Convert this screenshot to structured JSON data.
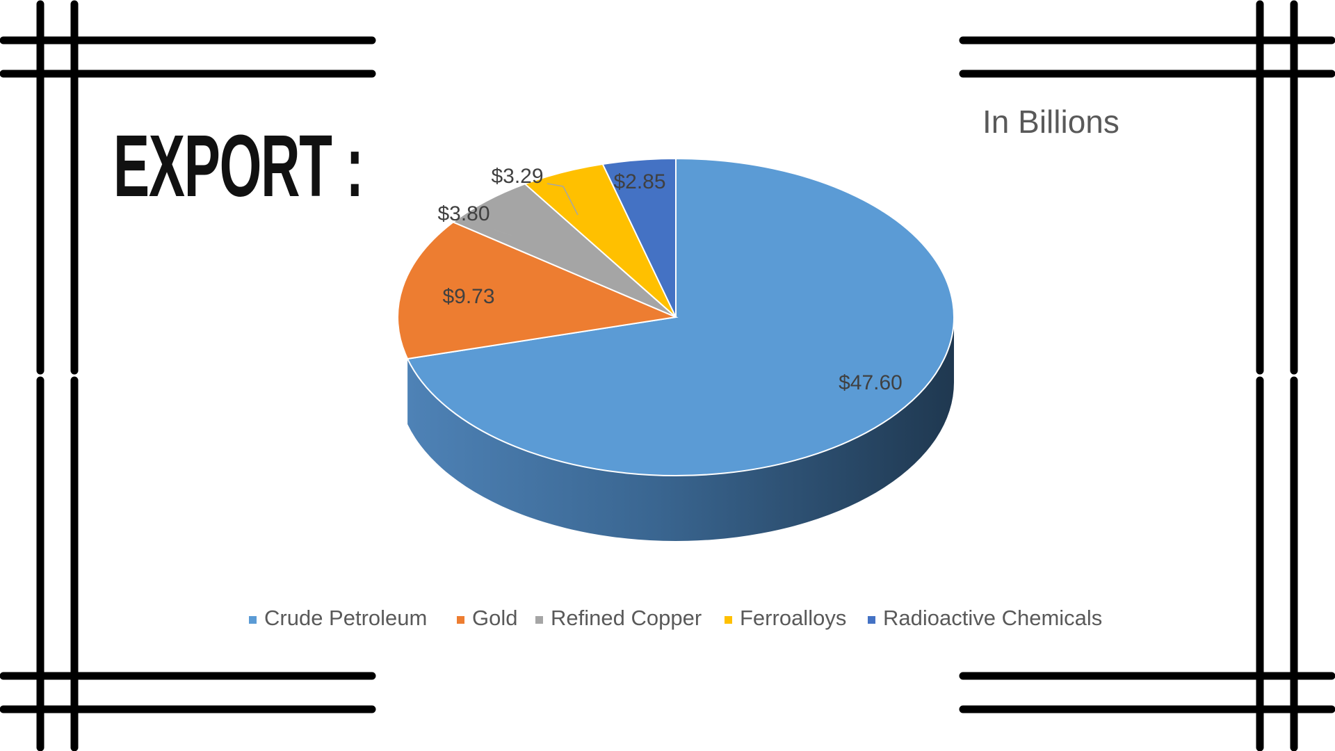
{
  "slide": {
    "title": "EXPORT :",
    "unit_label": "In Billions"
  },
  "chart_data": {
    "type": "pie",
    "style": "3d",
    "title": "",
    "categories": [
      "Crude Petroleum",
      "Gold",
      "Refined Copper",
      "Ferroalloys",
      "Radioactive Chemicals"
    ],
    "values": [
      47.6,
      9.73,
      3.8,
      3.29,
      2.85
    ],
    "data_labels": [
      "$47.60",
      "$9.73",
      "$3.80",
      "$3.29",
      "$2.85"
    ],
    "colors": [
      "#5B9BD5",
      "#ED7D31",
      "#A5A5A5",
      "#FFC000",
      "#4472C4"
    ],
    "legend_position": "bottom",
    "start_angle": "12 o'clock, clockwise"
  }
}
